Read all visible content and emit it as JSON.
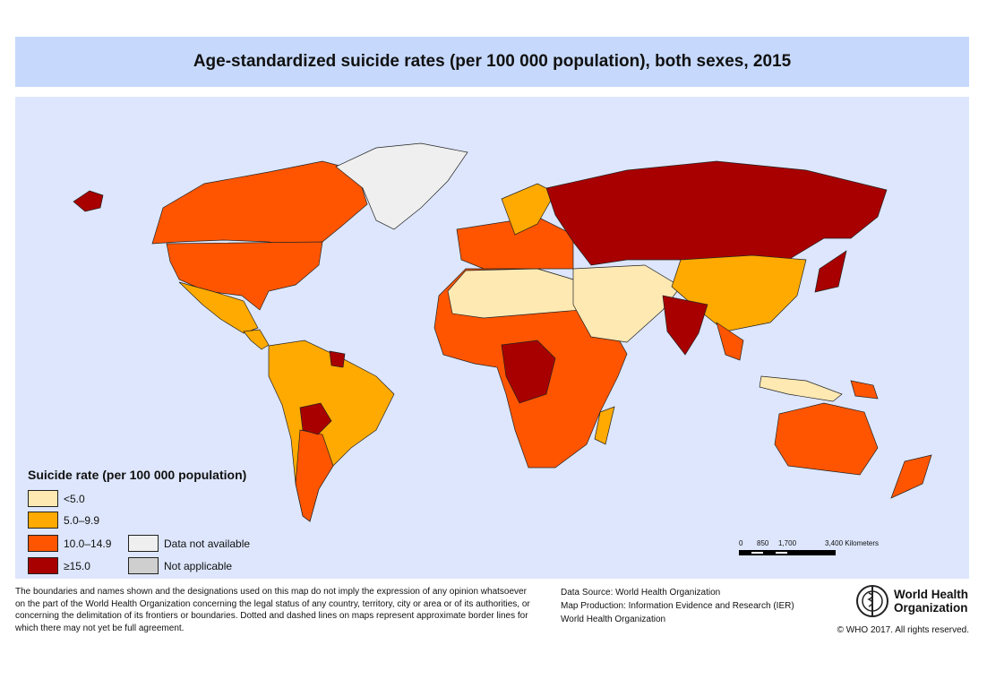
{
  "title": "Age-standardized suicide rates (per 100 000 population), both sexes, 2015",
  "legend": {
    "title": "Suicide rate (per 100 000 population)",
    "classes": [
      {
        "label": "<5.0",
        "color": "#ffe9b3"
      },
      {
        "label": "5.0–9.9",
        "color": "#ffaa00"
      },
      {
        "label": "10.0–14.9",
        "color": "#ff5500"
      },
      {
        "label": "≥15.0",
        "color": "#a80000"
      },
      {
        "label": "Data not available",
        "color": "#efefef"
      },
      {
        "label": "Not applicable",
        "color": "#cfcfcf"
      }
    ]
  },
  "scale_bar": {
    "ticks": [
      "0",
      "850",
      "1,700",
      "3,400 Kilometers"
    ]
  },
  "disclaimer": "The boundaries and names shown and the designations used on this map do not imply the expression of any opinion whatsoever on the part of the World Health Organization concerning the legal status of any country, territory, city or area or of its authorities, or concerning the delimitation of its frontiers or boundaries. Dotted and dashed lines on maps represent approximate border lines for which there may not yet be full agreement.",
  "credits": {
    "source": "Data Source: World Health Organization",
    "production": "Map Production: Information Evidence and Research (IER)",
    "org": "World Health Organization"
  },
  "logo": {
    "line1": "World Health",
    "line2": "Organization"
  },
  "copyright": "© WHO 2017. All rights reserved.",
  "colors": {
    "banner": "#c6d9fc",
    "ocean": "#dde6fc"
  }
}
